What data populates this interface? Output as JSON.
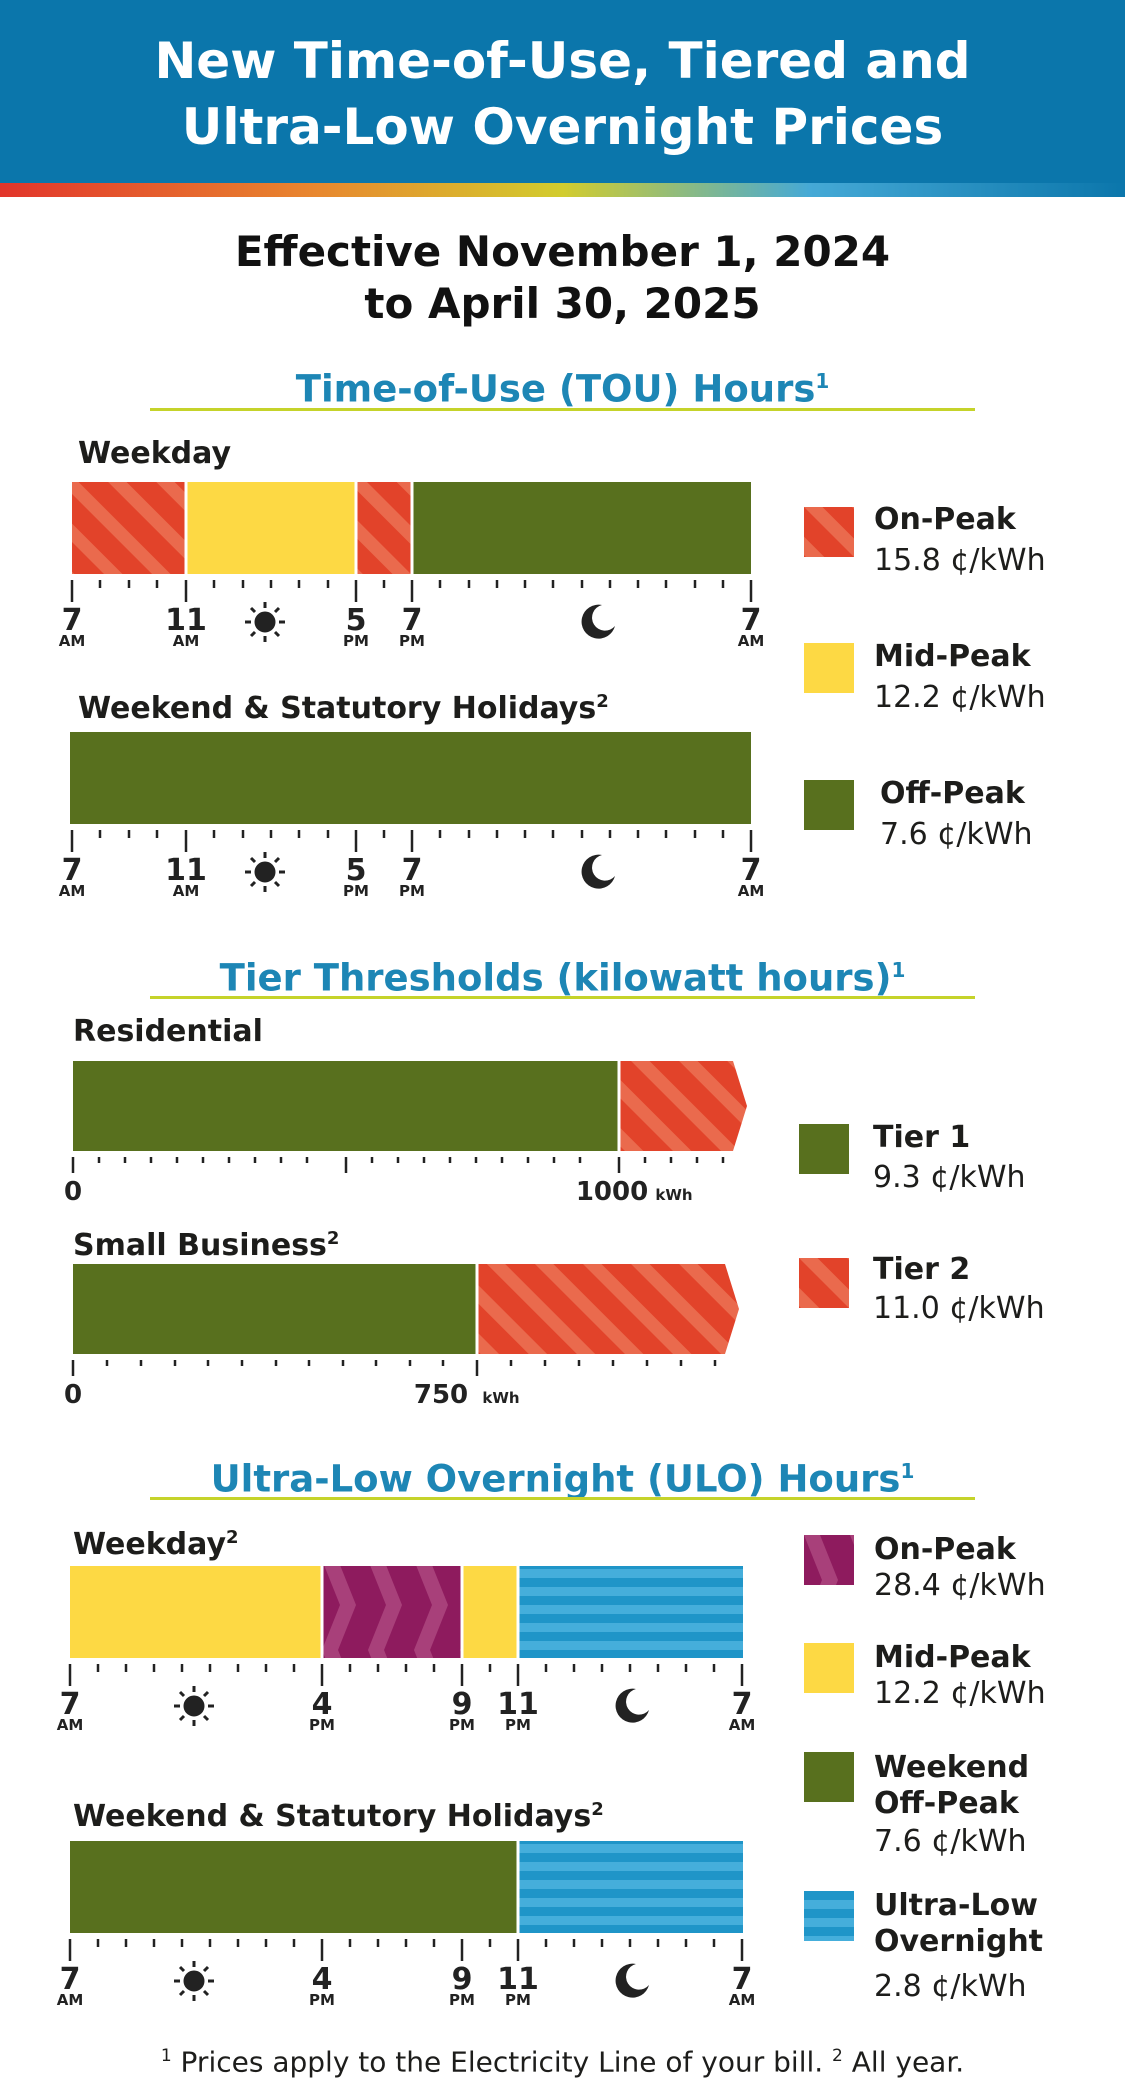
{
  "header": {
    "title_line1": "New Time-of-Use, Tiered and",
    "title_line2": "Ultra-Low Overnight Prices"
  },
  "effective": {
    "line1": "Effective November 1, 2024",
    "line2": "to April 30, 2025"
  },
  "colors": {
    "brand_blue": "#0b76ab",
    "title_blue": "#1d86b5",
    "rule_lime": "#c5d32a",
    "on_peak_red": "#e2432a",
    "mid_peak_yellow": "#fdd944",
    "off_peak_green": "#58701e",
    "ulo_on_peak_purple": "#8e1b5e",
    "ulo_overnight_blue": "#1f95c8"
  },
  "tou": {
    "title": "Time-of-Use (TOU) Hours",
    "title_sup": "1",
    "weekday_label": "Weekday",
    "weekend_label": "Weekend & Statutory Holidays",
    "weekend_sup": "2",
    "axis_ticks": [
      {
        "num": "7",
        "ampm": "AM"
      },
      {
        "num": "11",
        "ampm": "AM"
      },
      {
        "num": "5",
        "ampm": "PM"
      },
      {
        "num": "7",
        "ampm": "PM"
      },
      {
        "num": "7",
        "ampm": "AM"
      }
    ],
    "weekday_segments": [
      {
        "period": "On-Peak",
        "from": "7 AM",
        "to": "11 AM"
      },
      {
        "period": "Mid-Peak",
        "from": "11 AM",
        "to": "5 PM"
      },
      {
        "period": "On-Peak",
        "from": "5 PM",
        "to": "7 PM"
      },
      {
        "period": "Off-Peak",
        "from": "7 PM",
        "to": "7 AM"
      }
    ],
    "weekend_segments": [
      {
        "period": "Off-Peak",
        "from": "7 AM",
        "to": "7 AM"
      }
    ],
    "legend": [
      {
        "name": "On-Peak",
        "price": "15.8 ¢/kWh"
      },
      {
        "name": "Mid-Peak",
        "price": "12.2 ¢/kWh"
      },
      {
        "name": "Off-Peak",
        "price": "7.6 ¢/kWh"
      }
    ]
  },
  "tier": {
    "title": "Tier Thresholds (kilowatt hours)",
    "title_sup": "1",
    "residential_label": "Residential",
    "small_business_label": "Small Business",
    "small_business_sup": "2",
    "residential_threshold": "1000",
    "small_business_threshold": "750",
    "zero": "0",
    "unit": "kWh",
    "legend": [
      {
        "name": "Tier 1",
        "price": "9.3 ¢/kWh"
      },
      {
        "name": "Tier 2",
        "price": "11.0 ¢/kWh"
      }
    ]
  },
  "ulo": {
    "title": "Ultra-Low Overnight (ULO) Hours",
    "title_sup": "1",
    "weekday_label": "Weekday",
    "weekday_sup": "2",
    "weekend_label": "Weekend & Statutory Holidays",
    "weekend_sup": "2",
    "axis_ticks": [
      {
        "num": "7",
        "ampm": "AM"
      },
      {
        "num": "4",
        "ampm": "PM"
      },
      {
        "num": "9",
        "ampm": "PM"
      },
      {
        "num": "11",
        "ampm": "PM"
      },
      {
        "num": "7",
        "ampm": "AM"
      }
    ],
    "weekday_segments": [
      {
        "period": "Mid-Peak",
        "from": "7 AM",
        "to": "4 PM"
      },
      {
        "period": "On-Peak",
        "from": "4 PM",
        "to": "9 PM"
      },
      {
        "period": "Mid-Peak",
        "from": "9 PM",
        "to": "11 PM"
      },
      {
        "period": "Ultra-Low Overnight",
        "from": "11 PM",
        "to": "7 AM"
      }
    ],
    "weekend_segments": [
      {
        "period": "Weekend Off-Peak",
        "from": "7 AM",
        "to": "11 PM"
      },
      {
        "period": "Ultra-Low Overnight",
        "from": "11 PM",
        "to": "7 AM"
      }
    ],
    "legend": [
      {
        "name_line1": "On-Peak",
        "name_line2": "",
        "price": "28.4 ¢/kWh"
      },
      {
        "name_line1": "Mid-Peak",
        "name_line2": "",
        "price": "12.2 ¢/kWh"
      },
      {
        "name_line1": "Weekend",
        "name_line2": "Off-Peak",
        "price": "7.6 ¢/kWh"
      },
      {
        "name_line1": "Ultra-Low",
        "name_line2": "Overnight",
        "price": "2.8 ¢/kWh"
      }
    ]
  },
  "footnote": {
    "sup1": "1",
    "text1": " Prices apply to the Electricity Line of your bill. ",
    "sup2": "2",
    "text2": " All year."
  }
}
